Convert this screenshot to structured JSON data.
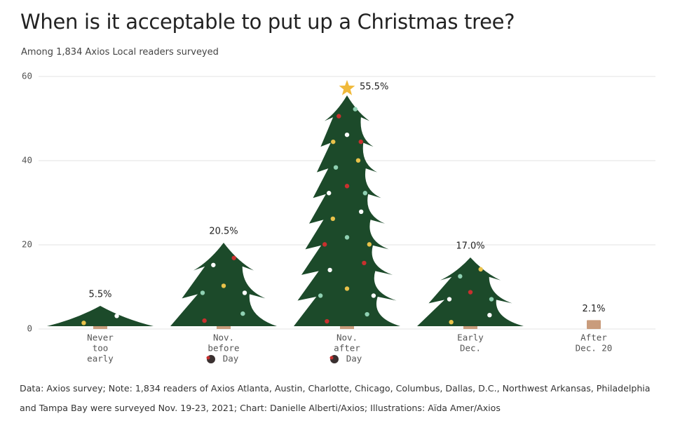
{
  "chart_data": {
    "type": "tree-bar",
    "title": "When is it acceptable to put up a Christmas tree?",
    "subtitle": "Among 1,834 Axios Local readers surveyed",
    "categories": [
      [
        "Never",
        "too",
        "early"
      ],
      [
        "Nov.",
        "before",
        "Day"
      ],
      [
        "Nov.",
        "after",
        "Day"
      ],
      [
        "Early",
        "Dec."
      ],
      [
        "After",
        "Dec. 20"
      ]
    ],
    "values": [
      5.5,
      20.5,
      55.5,
      17.0,
      2.1
    ],
    "value_labels": [
      "5.5%",
      "20.5%",
      "55.5%",
      "17.0%",
      "2.1%"
    ],
    "color": "#1c4a2a",
    "ylim": [
      0,
      60
    ],
    "yticks": [
      0,
      20,
      40,
      60
    ],
    "grid": true,
    "note": "Data: Axios survey; Note: 1,834 readers of Axios Atlanta, Austin, Charlotte, Chicago, Columbus, Dallas, D.C., Northwest Arkansas, Philadelphia and Tampa Bay were surveyed Nov. 19-23, 2021; Chart: Danielle Alberti/Axios; Illustrations: Aïda Amer/Axios"
  }
}
